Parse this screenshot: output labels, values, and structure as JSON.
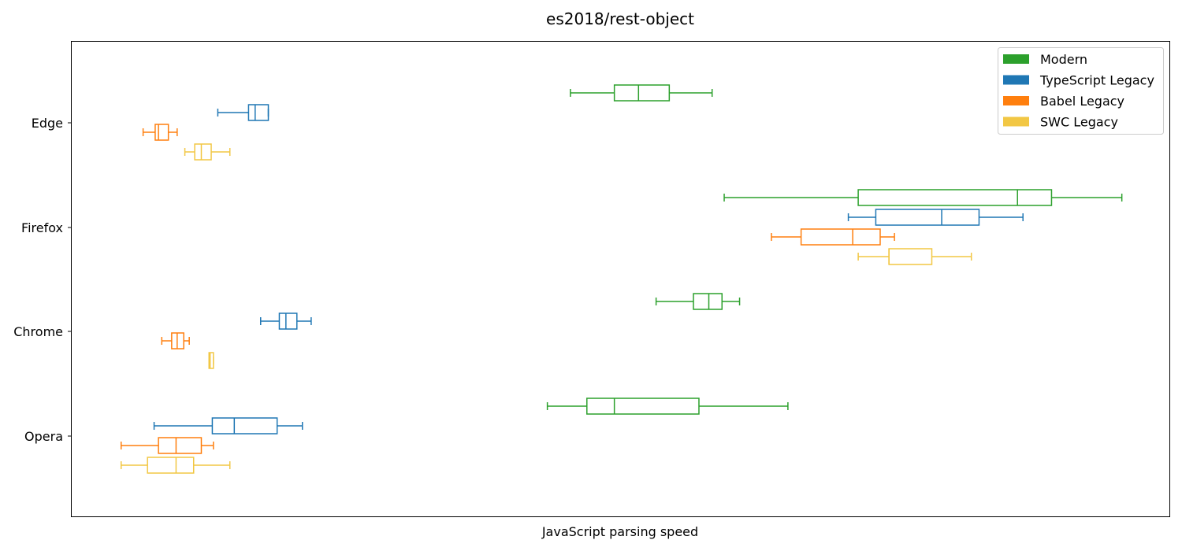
{
  "chart_data": {
    "type": "boxplot",
    "orientation": "horizontal",
    "title": "es2018/rest-object",
    "xlabel": "JavaScript parsing speed",
    "ylabel": "",
    "x_ticks_shown": false,
    "xlim": [
      0,
      100
    ],
    "grid": false,
    "legend_position": "top-right",
    "categories": [
      "Edge",
      "Firefox",
      "Chrome",
      "Opera"
    ],
    "series": [
      {
        "name": "Modern",
        "color": "#2ca02c",
        "boxes": [
          {
            "category": "Edge",
            "whislo": 45.4,
            "q1": 49.4,
            "med": 51.6,
            "q3": 54.4,
            "whishi": 58.3
          },
          {
            "category": "Firefox",
            "whislo": 59.4,
            "q1": 71.6,
            "med": 86.1,
            "q3": 89.2,
            "whishi": 95.6
          },
          {
            "category": "Chrome",
            "whislo": 53.2,
            "q1": 56.6,
            "med": 58.0,
            "q3": 59.2,
            "whishi": 60.8
          },
          {
            "category": "Opera",
            "whislo": 43.3,
            "q1": 46.9,
            "med": 49.4,
            "q3": 57.1,
            "whishi": 65.2
          }
        ]
      },
      {
        "name": "TypeScript Legacy",
        "color": "#1f77b4",
        "boxes": [
          {
            "category": "Edge",
            "whislo": 13.3,
            "q1": 16.1,
            "med": 16.7,
            "q3": 17.9,
            "whishi": 17.9
          },
          {
            "category": "Firefox",
            "whislo": 70.7,
            "q1": 73.2,
            "med": 79.2,
            "q3": 82.6,
            "whishi": 86.6
          },
          {
            "category": "Chrome",
            "whislo": 17.2,
            "q1": 18.9,
            "med": 19.5,
            "q3": 20.5,
            "whishi": 21.8
          },
          {
            "category": "Opera",
            "whislo": 7.5,
            "q1": 12.8,
            "med": 14.8,
            "q3": 18.7,
            "whishi": 21.0
          }
        ]
      },
      {
        "name": "Babel Legacy",
        "color": "#ff7f0e",
        "boxes": [
          {
            "category": "Edge",
            "whislo": 6.5,
            "q1": 7.6,
            "med": 7.9,
            "q3": 8.8,
            "whishi": 9.6
          },
          {
            "category": "Firefox",
            "whislo": 63.7,
            "q1": 66.4,
            "med": 71.1,
            "q3": 73.6,
            "whishi": 74.9
          },
          {
            "category": "Chrome",
            "whislo": 8.2,
            "q1": 9.1,
            "med": 9.6,
            "q3": 10.2,
            "whishi": 10.7
          },
          {
            "category": "Opera",
            "whislo": 4.5,
            "q1": 7.9,
            "med": 9.5,
            "q3": 11.8,
            "whishi": 12.9
          }
        ]
      },
      {
        "name": "SWC Legacy",
        "color": "#f2c744",
        "boxes": [
          {
            "category": "Edge",
            "whislo": 10.3,
            "q1": 11.2,
            "med": 11.8,
            "q3": 12.7,
            "whishi": 14.4
          },
          {
            "category": "Firefox",
            "whislo": 71.6,
            "q1": 74.4,
            "med": 74.4,
            "q3": 78.3,
            "whishi": 81.9
          },
          {
            "category": "Chrome",
            "whislo": 12.5,
            "q1": 12.5,
            "med": 12.6,
            "q3": 12.9,
            "whishi": 12.9
          },
          {
            "category": "Opera",
            "whislo": 4.5,
            "q1": 6.9,
            "med": 9.5,
            "q3": 11.1,
            "whishi": 14.4
          }
        ]
      }
    ]
  }
}
